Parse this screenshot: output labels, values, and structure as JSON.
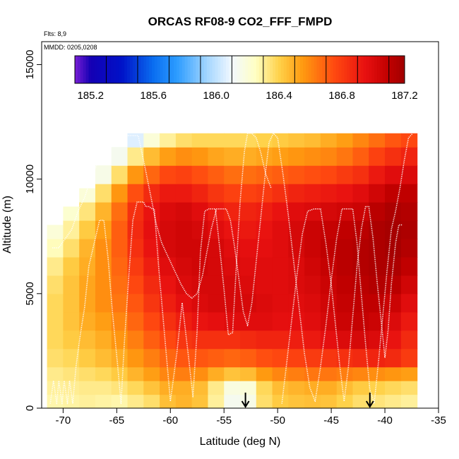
{
  "chart_data": {
    "type": "heatmap",
    "title": "ORCAS RF08-9 CO2_FFF_FMPD",
    "flights_note": "Flts: 8,9",
    "dates_note": "MMDD: 0205,0208",
    "xlabel": "Latitude (deg N)",
    "ylabel": "Altitude (m)",
    "xlim": [
      -72,
      -35
    ],
    "ylim": [
      0,
      16000
    ],
    "x_ticks": [
      -70,
      -65,
      -60,
      -55,
      -50,
      -45,
      -40,
      -35
    ],
    "x_tick_labels": [
      "-70",
      "-65",
      "-60",
      "-55",
      "-50",
      "-45",
      "-40",
      "-35"
    ],
    "y_ticks": [
      0,
      5000,
      10000,
      15000
    ],
    "y_tick_labels": [
      "0",
      "5000",
      "10000",
      "15000"
    ],
    "colorbar": {
      "range": [
        185.1,
        187.2
      ],
      "ticks": [
        185.2,
        185.6,
        186.0,
        186.4,
        186.8,
        187.2
      ],
      "tick_labels": [
        "185.2",
        "185.6",
        "186.0",
        "186.4",
        "186.8",
        "187.2"
      ],
      "divisions": [
        185.1,
        185.3,
        185.5,
        185.7,
        185.9,
        186.1,
        186.3,
        186.5,
        186.7,
        186.9,
        187.1,
        187.2
      ],
      "stops": [
        {
          "v": 185.1,
          "color": "#7a1fd6"
        },
        {
          "v": 185.2,
          "color": "#1400b4"
        },
        {
          "v": 185.4,
          "color": "#0012c8"
        },
        {
          "v": 185.6,
          "color": "#0a6ef0"
        },
        {
          "v": 185.75,
          "color": "#2c9cff"
        },
        {
          "v": 185.95,
          "color": "#a8d8ff"
        },
        {
          "v": 186.1,
          "color": "#f2f8ff"
        },
        {
          "v": 186.25,
          "color": "#ffffc4"
        },
        {
          "v": 186.4,
          "color": "#ffd24a"
        },
        {
          "v": 186.55,
          "color": "#ff9a10"
        },
        {
          "v": 186.75,
          "color": "#ff4a10"
        },
        {
          "v": 186.95,
          "color": "#e81010"
        },
        {
          "v": 187.1,
          "color": "#c00000"
        },
        {
          "v": 187.2,
          "color": "#a00000"
        }
      ]
    },
    "field": {
      "lat_edges": [
        -71.5,
        -70.0,
        -68.5,
        -67.0,
        -65.5,
        -64.0,
        -62.5,
        -61.0,
        -59.5,
        -58.0,
        -56.5,
        -55.0,
        -53.5,
        -52.0,
        -50.5,
        -49.0,
        -47.5,
        -46.0,
        -44.5,
        -43.0,
        -41.5,
        -40.0,
        -38.5,
        -37.0
      ],
      "alt_edges": [
        0,
        600,
        1200,
        1800,
        2600,
        3400,
        4200,
        5000,
        5800,
        6600,
        7400,
        8200,
        9000,
        9800,
        10600,
        11400,
        12000
      ],
      "valid_top_alt": [
        8000,
        8800,
        9600,
        10600,
        11400,
        12000,
        12000,
        12000,
        12000,
        12000,
        12000,
        12000,
        12000,
        12000,
        12000,
        12000,
        12000,
        12000,
        12000,
        12000,
        12000,
        12000,
        12000
      ],
      "values": [
        [
          186.28,
          186.29,
          186.3,
          186.29,
          186.28,
          186.32,
          186.36,
          186.45,
          186.48,
          186.44,
          186.3,
          186.14,
          186.16,
          186.36,
          186.42,
          186.44,
          186.45,
          186.44,
          186.4,
          186.36,
          186.34,
          186.32,
          186.3
        ],
        [
          186.3,
          186.31,
          186.32,
          186.32,
          186.34,
          186.38,
          186.44,
          186.5,
          186.5,
          186.46,
          186.32,
          186.18,
          186.2,
          186.38,
          186.46,
          186.48,
          186.5,
          186.5,
          186.46,
          186.42,
          186.4,
          186.38,
          186.36
        ],
        [
          186.32,
          186.34,
          186.36,
          186.38,
          186.42,
          186.48,
          186.54,
          186.6,
          186.62,
          186.58,
          186.5,
          186.44,
          186.46,
          186.55,
          186.6,
          186.62,
          186.64,
          186.64,
          186.62,
          186.6,
          186.58,
          186.56,
          186.54
        ],
        [
          186.36,
          186.38,
          186.42,
          186.46,
          186.5,
          186.56,
          186.62,
          186.68,
          186.72,
          186.72,
          186.7,
          186.68,
          186.7,
          186.74,
          186.76,
          186.78,
          186.8,
          186.82,
          186.84,
          186.86,
          186.88,
          186.86,
          186.8
        ],
        [
          186.38,
          186.42,
          186.46,
          186.5,
          186.56,
          186.62,
          186.7,
          186.76,
          186.82,
          186.84,
          186.84,
          186.84,
          186.86,
          186.88,
          186.88,
          186.9,
          186.92,
          186.96,
          187.0,
          187.02,
          187.0,
          186.94,
          186.86
        ],
        [
          186.38,
          186.44,
          186.5,
          186.54,
          186.6,
          186.68,
          186.76,
          186.84,
          186.9,
          186.94,
          186.96,
          186.98,
          186.98,
          186.98,
          186.96,
          186.96,
          186.98,
          187.02,
          187.06,
          187.08,
          187.06,
          187.0,
          186.92
        ],
        [
          186.38,
          186.44,
          186.52,
          186.58,
          186.64,
          186.72,
          186.82,
          186.9,
          186.96,
          187.0,
          187.02,
          187.02,
          187.02,
          187.0,
          186.98,
          186.98,
          187.0,
          187.04,
          187.08,
          187.1,
          187.1,
          187.06,
          186.98
        ],
        [
          186.36,
          186.44,
          186.52,
          186.58,
          186.66,
          186.76,
          186.86,
          186.94,
          187.0,
          187.02,
          187.02,
          187.02,
          187.0,
          186.98,
          186.98,
          187.0,
          187.02,
          187.06,
          187.1,
          187.12,
          187.14,
          187.12,
          187.04
        ],
        [
          186.32,
          186.42,
          186.5,
          186.58,
          186.68,
          186.8,
          186.9,
          186.98,
          187.02,
          187.04,
          187.02,
          187.0,
          186.98,
          186.98,
          186.98,
          187.0,
          187.04,
          187.08,
          187.12,
          187.14,
          187.16,
          187.16,
          187.1
        ],
        [
          186.26,
          186.36,
          186.48,
          186.58,
          186.7,
          186.84,
          186.94,
          187.02,
          187.04,
          187.04,
          187.02,
          186.98,
          186.96,
          186.96,
          186.98,
          187.02,
          187.06,
          187.1,
          187.12,
          187.14,
          187.16,
          187.18,
          187.14
        ],
        [
          186.2,
          186.3,
          186.42,
          186.54,
          186.7,
          186.86,
          186.96,
          187.02,
          187.04,
          187.02,
          186.98,
          186.94,
          186.92,
          186.94,
          186.98,
          187.02,
          187.06,
          187.08,
          187.1,
          187.12,
          187.16,
          187.18,
          187.16
        ],
        [
          186.12,
          186.22,
          186.34,
          186.48,
          186.66,
          186.84,
          186.94,
          187.0,
          187.02,
          186.98,
          186.92,
          186.88,
          186.88,
          186.9,
          186.94,
          186.98,
          187.0,
          187.02,
          187.04,
          187.06,
          187.12,
          187.16,
          187.14
        ],
        [
          185.98,
          186.1,
          186.2,
          186.36,
          186.56,
          186.74,
          186.86,
          186.92,
          186.92,
          186.88,
          186.82,
          186.78,
          186.78,
          186.8,
          186.84,
          186.88,
          186.9,
          186.92,
          186.94,
          186.98,
          187.04,
          187.1,
          187.1
        ],
        [
          185.8,
          185.9,
          186.0,
          186.16,
          186.36,
          186.56,
          186.68,
          186.76,
          186.78,
          186.74,
          186.7,
          186.66,
          186.66,
          186.68,
          186.7,
          186.72,
          186.74,
          186.76,
          186.8,
          186.84,
          186.92,
          186.98,
          187.0
        ],
        [
          185.6,
          185.7,
          185.82,
          185.96,
          186.14,
          186.32,
          186.46,
          186.54,
          186.58,
          186.56,
          186.52,
          186.5,
          186.5,
          186.52,
          186.54,
          186.56,
          186.58,
          186.6,
          186.64,
          186.7,
          186.78,
          186.84,
          186.88
        ],
        [
          185.3,
          185.42,
          185.56,
          185.72,
          185.9,
          186.06,
          186.2,
          186.3,
          186.36,
          186.38,
          186.38,
          186.38,
          186.38,
          186.4,
          186.42,
          186.44,
          186.46,
          186.5,
          186.54,
          186.6,
          186.66,
          186.72,
          186.76
        ]
      ]
    },
    "flight_tracks": [
      {
        "lat": [
          -71.2,
          -70.9,
          -70.6,
          -70.4,
          -70.1,
          -69.9,
          -69.6,
          -69.4,
          -69.1,
          -68.8,
          -68.4,
          -68.0,
          -67.6,
          -67.1,
          -66.6,
          -66.2,
          -65.8,
          -65.4,
          -64.9,
          -64.6,
          -64.3,
          -63.9,
          -63.5,
          -63.1,
          -62.7,
          -62.5,
          -62.3,
          -62.0,
          -61.7,
          -61.5,
          -61.1,
          -60.6,
          -60.0,
          -59.4,
          -58.9,
          -58.3,
          -57.9,
          -57.5,
          -57.2,
          -56.8,
          -56.4,
          -56.1,
          -55.8,
          -55.4,
          -55.0,
          -54.6,
          -54.2,
          -53.8,
          -53.5,
          -53.1,
          -52.8,
          -52.4,
          -52.0,
          -51.6,
          -51.1,
          -50.6
        ],
        "alt": [
          200,
          1200,
          200,
          1200,
          200,
          1200,
          200,
          1200,
          200,
          1800,
          3200,
          4400,
          6200,
          7200,
          8200,
          8200,
          6500,
          4200,
          1800,
          200,
          2800,
          5600,
          8200,
          9000,
          9000,
          9000,
          8800,
          8800,
          8700,
          8700,
          6200,
          3500,
          300,
          2400,
          4600,
          2200,
          500,
          3400,
          6800,
          8600,
          8700,
          8700,
          8700,
          7000,
          5200,
          3200,
          3300,
          6600,
          9000,
          11200,
          12000,
          12000,
          11800,
          11200,
          10200,
          9600
        ]
      },
      {
        "lat": [
          -71.0,
          -70.4,
          -69.8,
          -69.2,
          -68.6,
          -68.0,
          -67.5,
          -66.9,
          -66.3,
          -65.6,
          -64.8,
          -64.2,
          -63.6,
          -63.0,
          -62.4,
          -61.8,
          -61.3,
          -60.8,
          -60.2,
          -59.6,
          -59.0,
          -58.5,
          -58.0,
          -57.5,
          -57.0,
          -56.6,
          -56.2,
          -55.7,
          -55.2,
          -54.8,
          -54.4,
          -54.0,
          -53.6,
          -53.2,
          -52.8,
          -52.4,
          -52.0,
          -51.6,
          -51.2,
          -50.8,
          -50.4,
          -50.0,
          -49.5,
          -49.0,
          -48.5,
          -48.0,
          -47.5,
          -47.0,
          -46.5,
          -46.0,
          -45.5,
          -45.0,
          -44.5,
          -44.0,
          -43.5,
          -43.0,
          -42.6,
          -42.2,
          -41.8,
          -41.4,
          -41.0,
          -40.6,
          -40.2,
          -39.8,
          -39.4,
          -39.0,
          -38.6,
          -38.2,
          -37.8,
          -37.4
        ],
        "alt": [
          7000,
          7000,
          7400,
          7800,
          8600,
          9200,
          9900,
          10600,
          11400,
          11800,
          11800,
          11900,
          11900,
          11900,
          10600,
          9200,
          8000,
          7200,
          6600,
          6000,
          5400,
          5000,
          4800,
          5000,
          5800,
          6800,
          7800,
          8700,
          8700,
          8700,
          8200,
          7000,
          5600,
          4200,
          3600,
          4600,
          6400,
          8200,
          10000,
          11600,
          12000,
          11800,
          10200,
          8400,
          6400,
          4400,
          2400,
          900,
          300,
          1800,
          3600,
          5600,
          7400,
          8700,
          8700,
          8700,
          7200,
          5000,
          2800,
          800,
          200,
          2000,
          4000,
          6000,
          7800,
          8600,
          9600,
          10800,
          11800,
          12000
        ]
      },
      {
        "lat": [
          -49.6,
          -49.2,
          -48.7,
          -48.2,
          -47.7,
          -47.2,
          -46.6,
          -46.0,
          -45.5,
          -45.0,
          -44.6,
          -44.2,
          -43.8,
          -43.4,
          -43.0,
          -42.6,
          -42.2,
          -41.8,
          -41.5,
          -41.1,
          -40.7,
          -40.3,
          -40.0,
          -39.7,
          -39.4,
          -39.0,
          -38.7,
          -38.4
        ],
        "alt": [
          200,
          1800,
          3800,
          5800,
          7600,
          8600,
          8700,
          8700,
          7200,
          5400,
          3600,
          1800,
          300,
          1800,
          4000,
          6200,
          7800,
          8800,
          8800,
          7400,
          5400,
          3600,
          2200,
          3400,
          5400,
          7200,
          8000,
          8000
        ]
      }
    ],
    "markers": [
      {
        "lat": -53.0,
        "label": "arrow"
      },
      {
        "lat": -41.4,
        "label": "arrow"
      }
    ]
  }
}
